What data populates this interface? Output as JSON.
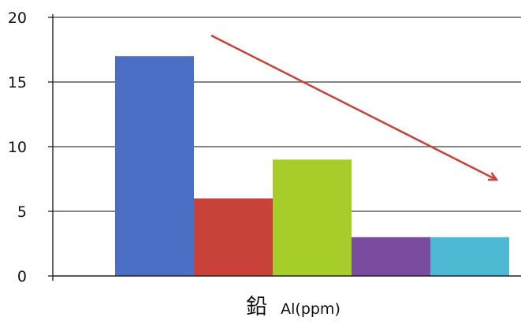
{
  "chart_data": {
    "type": "bar",
    "title": "",
    "xlabel": "鉛 Al(ppm)",
    "xlabel_parts": [
      "鉛",
      "Al(ppm)"
    ],
    "ylabel": "",
    "ylim": [
      0,
      20
    ],
    "yticks": [
      0,
      5,
      10,
      15,
      20
    ],
    "ytick_labels": [
      "0",
      "5",
      "10",
      "15",
      "20"
    ],
    "grid": "horizontal",
    "legend": "none",
    "series": [
      {
        "values": [
          17,
          6,
          9,
          3,
          3
        ]
      }
    ],
    "bar_colors": [
      "#4a6fc4",
      "#c8423a",
      "#a6cd2a",
      "#7a4c9f",
      "#4db8d2"
    ],
    "annotations": [
      {
        "type": "arrow",
        "direction": "down-right",
        "color": "#c8423a",
        "meaning": "decreasing trend"
      }
    ]
  }
}
